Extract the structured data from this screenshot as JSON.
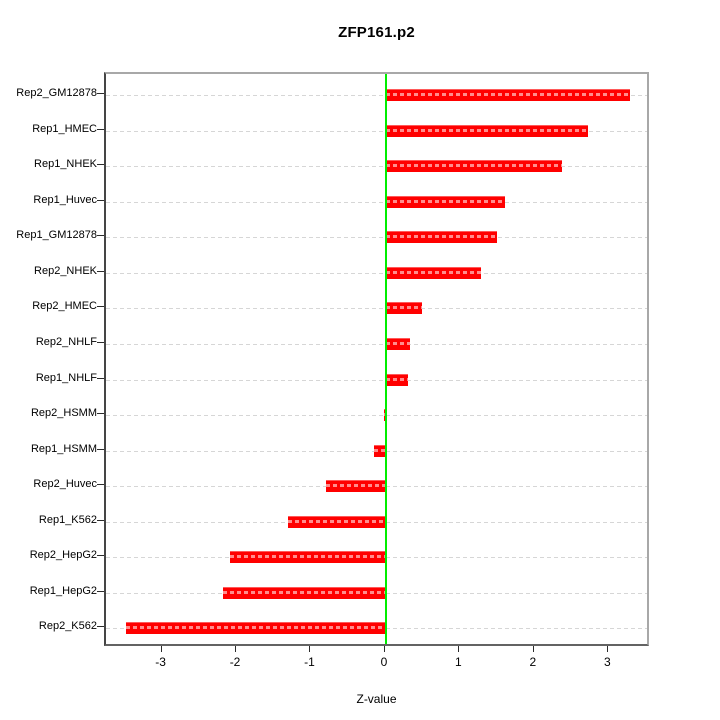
{
  "title": "ZFP161.p2",
  "chart_data": {
    "type": "bar",
    "orientation": "horizontal",
    "title": "ZFP161.p2",
    "xlabel": "Z-value",
    "ylabel": "",
    "categories_top_to_bottom": [
      "Rep2_GM12878",
      "Rep1_HMEC",
      "Rep1_NHEK",
      "Rep1_Huvec",
      "Rep1_GM12878",
      "Rep2_NHEK",
      "Rep2_HMEC",
      "Rep2_NHLF",
      "Rep1_NHLF",
      "Rep2_HSMM",
      "Rep1_HSMM",
      "Rep2_Huvec",
      "Rep1_K562",
      "Rep2_HepG2",
      "Rep1_HepG2",
      "Rep2_K562"
    ],
    "values": [
      3.28,
      2.71,
      2.37,
      1.6,
      1.49,
      1.28,
      0.49,
      0.32,
      0.3,
      -0.03,
      -0.16,
      -0.81,
      -1.32,
      -2.1,
      -2.19,
      -3.49
    ],
    "x_ticks": [
      -3,
      -2,
      -1,
      0,
      1,
      2,
      3
    ],
    "xlim": [
      -3.76,
      3.56
    ],
    "grid": "dotted horizontal line per category",
    "legend": "none",
    "zero_reference_line": 0,
    "colors": {
      "bar": "#ff0000",
      "bar_inner_dash": "rgba(255,255,255,0.55)",
      "zero_line": "#00ee00",
      "grid": "#d6d6d6",
      "box_top_right": "#a8a8a8",
      "box_left": "#454545",
      "box_bottom": "#636363",
      "tick": "#2b2b2b",
      "text": "#000000",
      "background": "#ffffff"
    }
  }
}
